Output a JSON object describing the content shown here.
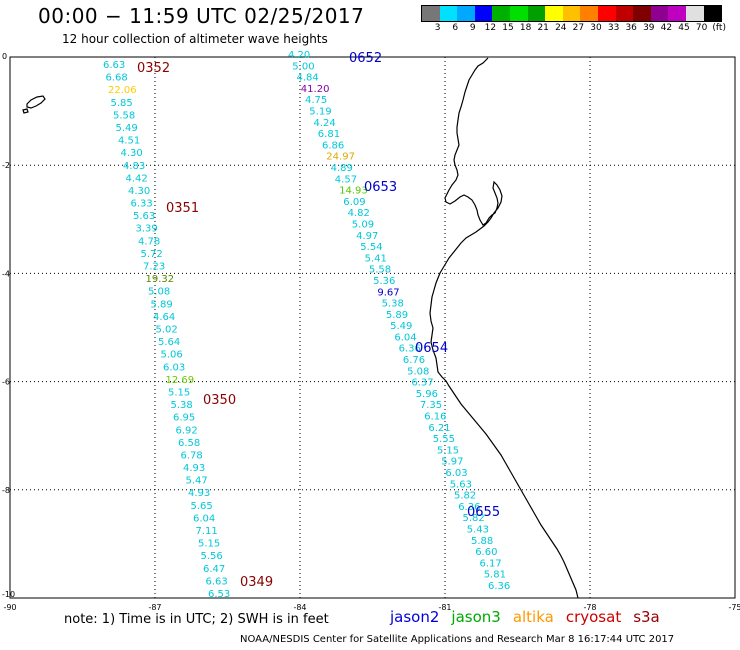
{
  "header": {
    "title": "00:00 − 11:59 UTC 02/25/2017",
    "subtitle": "12 hour collection of altimeter wave heights"
  },
  "colorbar": {
    "colors": [
      "#777777",
      "#00e0ff",
      "#00a8ff",
      "#0000ff",
      "#00b000",
      "#00e000",
      "#00a000",
      "#ffff00",
      "#ffc000",
      "#ff8000",
      "#ff0000",
      "#c00000",
      "#800000",
      "#900090",
      "#c000c0",
      "#e0e0e0",
      "#000000"
    ],
    "labels": [
      "3",
      "6",
      "9",
      "12",
      "15",
      "18",
      "21",
      "24",
      "27",
      "30",
      "33",
      "36",
      "39",
      "42",
      "45",
      "70",
      "(ft)"
    ]
  },
  "axes": {
    "x_ticks": [
      "-90",
      "-87",
      "-84",
      "-81",
      "-78",
      "-75"
    ],
    "y_ticks": [
      "0",
      "-2",
      "-4",
      "-6",
      "-8",
      "-10"
    ],
    "xlim": [
      -90,
      -75
    ],
    "ylim": [
      -10,
      0
    ]
  },
  "tracks": [
    {
      "time": "0352",
      "time_color": "#8b0000",
      "values": [
        "6.63",
        "6.68",
        "22.06",
        "5.85",
        "5.58",
        "5.49",
        "4.51",
        "4.30",
        "4.83",
        "4.42",
        "4.30",
        "6.33",
        "5.63",
        "3.39",
        "4.78",
        "5.72",
        "7.23",
        "19.32",
        "5.08",
        "5.89",
        "4.64",
        "5.02",
        "5.64",
        "5.06",
        "6.03",
        "12.69",
        "5.15",
        "5.38",
        "6.95",
        "6.92",
        "6.58",
        "6.78",
        "4.93",
        "5.47",
        "4.93",
        "5.65",
        "6.04",
        "7.11",
        "5.15",
        "5.56",
        "6.47",
        "6.63",
        "6.53"
      ],
      "colors": [
        "#00c8d8",
        "#00c8d8",
        "#ffcc00",
        "#00c8d8",
        "#00c8d8",
        "#00c8d8",
        "#00c8d8",
        "#00c8d8",
        "#00c8d8",
        "#00c8d8",
        "#00c8d8",
        "#00c8d8",
        "#00c8d8",
        "#00c8d8",
        "#00c8d8",
        "#00c8d8",
        "#00c8d8",
        "#558800",
        "#00c8d8",
        "#00c8d8",
        "#00c8d8",
        "#00c8d8",
        "#00c8d8",
        "#00c8d8",
        "#00c8d8",
        "#66cc00",
        "#00c8d8",
        "#00c8d8",
        "#00c8d8",
        "#00c8d8",
        "#00c8d8",
        "#00c8d8",
        "#00c8d8",
        "#00c8d8",
        "#00c8d8",
        "#00c8d8",
        "#00c8d8",
        "#00c8d8",
        "#00c8d8",
        "#00c8d8",
        "#00c8d8",
        "#00c8d8",
        "#00c8d8"
      ]
    },
    {
      "time": "0652",
      "time_color": "#0000cc",
      "values": [
        "4.20",
        "5.00",
        "4.84",
        "41.20",
        "4.75",
        "5.19",
        "4.24",
        "6.81",
        "6.86",
        "24.97",
        "4.89",
        "4.57",
        "14.93",
        "6.09",
        "4.82",
        "5.09",
        "4.97",
        "5.54",
        "5.41",
        "5.58",
        "5.36",
        "9.67",
        "5.38",
        "5.89",
        "5.49",
        "6.04",
        "6.36",
        "6.76",
        "5.08",
        "6.37",
        "5.96",
        "7.35",
        "6.16",
        "6.21",
        "5.55",
        "5.15",
        "5.97",
        "6.03",
        "5.63",
        "5.82",
        "6.36",
        "5.82",
        "5.43",
        "5.88",
        "6.60",
        "6.17",
        "5.81",
        "6.36"
      ],
      "colors": [
        "#00c8d8",
        "#00c8d8",
        "#00c8d8",
        "#8800aa",
        "#00c8d8",
        "#00c8d8",
        "#00c8d8",
        "#00c8d8",
        "#00c8d8",
        "#ddaa00",
        "#00c8d8",
        "#00c8d8",
        "#55cc00",
        "#00c8d8",
        "#00c8d8",
        "#00c8d8",
        "#00c8d8",
        "#00c8d8",
        "#00c8d8",
        "#00c8d8",
        "#00c8d8",
        "#0000cc",
        "#00c8d8",
        "#00c8d8",
        "#00c8d8",
        "#00c8d8",
        "#00c8d8",
        "#00c8d8",
        "#00c8d8",
        "#00c8d8",
        "#00c8d8",
        "#00c8d8",
        "#00c8d8",
        "#00c8d8",
        "#00c8d8",
        "#00c8d8",
        "#00c8d8",
        "#00c8d8",
        "#00c8d8",
        "#00c8d8",
        "#00c8d8",
        "#00c8d8",
        "#00c8d8",
        "#00c8d8",
        "#00c8d8",
        "#00c8d8",
        "#00c8d8",
        "#00c8d8"
      ]
    }
  ],
  "time_labels": [
    {
      "text": "0352",
      "color": "#8b0000"
    },
    {
      "text": "0351",
      "color": "#8b0000"
    },
    {
      "text": "0350",
      "color": "#8b0000"
    },
    {
      "text": "0349",
      "color": "#8b0000"
    },
    {
      "text": "0652",
      "color": "#0000cc"
    },
    {
      "text": "0653",
      "color": "#0000cc"
    },
    {
      "text": "0654",
      "color": "#0000cc"
    },
    {
      "text": "0655",
      "color": "#0000cc"
    }
  ],
  "footer": {
    "note": "note: 1) Time is in UTC; 2) SWH is in feet",
    "credit": "NOAA/NESDIS Center for Satellite Applications and Research   Mar  8 16:17:44 UTC 2017",
    "satellites": [
      {
        "name": "jason2",
        "color": "#0000dd"
      },
      {
        "name": "jason3",
        "color": "#00aa00"
      },
      {
        "name": "altika",
        "color": "#ff9900"
      },
      {
        "name": "cryosat",
        "color": "#cc0000"
      },
      {
        "name": "s3a",
        "color": "#990000"
      }
    ]
  }
}
